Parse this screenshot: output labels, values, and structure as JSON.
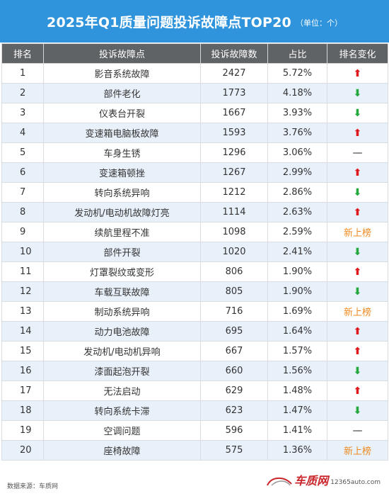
{
  "header": {
    "title": "2025年Q1质量问题投诉故障点TOP20",
    "unit": "（单位：个）"
  },
  "table": {
    "columns": [
      "排名",
      "投诉故障点",
      "投诉故障数",
      "占比",
      "排名变化"
    ],
    "rows": [
      {
        "rank": "1",
        "issue": "影音系统故障",
        "count": "2427",
        "share": "5.72%",
        "change": "up"
      },
      {
        "rank": "2",
        "issue": "部件老化",
        "count": "1773",
        "share": "4.18%",
        "change": "down"
      },
      {
        "rank": "3",
        "issue": "仪表台开裂",
        "count": "1667",
        "share": "3.93%",
        "change": "down"
      },
      {
        "rank": "4",
        "issue": "变速箱电脑板故障",
        "count": "1593",
        "share": "3.76%",
        "change": "up"
      },
      {
        "rank": "5",
        "issue": "车身生锈",
        "count": "1296",
        "share": "3.06%",
        "change": "same"
      },
      {
        "rank": "6",
        "issue": "变速箱顿挫",
        "count": "1267",
        "share": "2.99%",
        "change": "up"
      },
      {
        "rank": "7",
        "issue": "转向系统异响",
        "count": "1212",
        "share": "2.86%",
        "change": "down"
      },
      {
        "rank": "8",
        "issue": "发动机/电动机故障灯亮",
        "count": "1114",
        "share": "2.63%",
        "change": "up"
      },
      {
        "rank": "9",
        "issue": "续航里程不准",
        "count": "1098",
        "share": "2.59%",
        "change": "new"
      },
      {
        "rank": "10",
        "issue": "部件开裂",
        "count": "1020",
        "share": "2.41%",
        "change": "down"
      },
      {
        "rank": "11",
        "issue": "灯罩裂纹或变形",
        "count": "806",
        "share": "1.90%",
        "change": "up"
      },
      {
        "rank": "12",
        "issue": "车载互联故障",
        "count": "805",
        "share": "1.90%",
        "change": "down"
      },
      {
        "rank": "13",
        "issue": "制动系统异响",
        "count": "716",
        "share": "1.69%",
        "change": "new"
      },
      {
        "rank": "14",
        "issue": "动力电池故障",
        "count": "695",
        "share": "1.64%",
        "change": "up"
      },
      {
        "rank": "15",
        "issue": "发动机/电动机异响",
        "count": "667",
        "share": "1.57%",
        "change": "up"
      },
      {
        "rank": "16",
        "issue": "漆面起泡开裂",
        "count": "660",
        "share": "1.56%",
        "change": "down"
      },
      {
        "rank": "17",
        "issue": "无法启动",
        "count": "629",
        "share": "1.48%",
        "change": "up"
      },
      {
        "rank": "18",
        "issue": "转向系统卡滞",
        "count": "623",
        "share": "1.47%",
        "change": "down"
      },
      {
        "rank": "19",
        "issue": "空调问题",
        "count": "596",
        "share": "1.41%",
        "change": "same"
      },
      {
        "rank": "20",
        "issue": "座椅故障",
        "count": "575",
        "share": "1.36%",
        "change": "new"
      }
    ],
    "change_symbols": {
      "up": "⬆",
      "down": "⬇",
      "same": "—",
      "new": "新上榜"
    }
  },
  "footer": {
    "source": "数据来源：车质网",
    "logo_text": "车质网",
    "url": "12365auto.com"
  },
  "colors": {
    "header_bg": "#2f94dc",
    "table_header_bg": "#5f6366",
    "alt_row_bg": "#e8f0fa",
    "up": "#e0181d",
    "down": "#23a83c",
    "new": "#ee8a1f"
  }
}
